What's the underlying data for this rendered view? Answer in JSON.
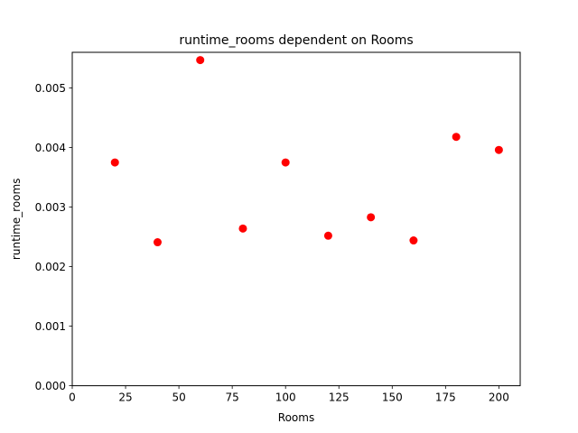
{
  "chart_data": {
    "type": "scatter",
    "title": "runtime_rooms dependent on Rooms",
    "xlabel": "Rooms",
    "ylabel": "runtime_rooms",
    "xlim": [
      0,
      210
    ],
    "ylim": [
      0,
      0.0056
    ],
    "xticks": [
      0,
      25,
      50,
      75,
      100,
      125,
      150,
      175,
      200
    ],
    "yticks": [
      0.0,
      0.001,
      0.002,
      0.003,
      0.004,
      0.005
    ],
    "xtick_labels": [
      "0",
      "25",
      "50",
      "75",
      "100",
      "125",
      "150",
      "175",
      "200"
    ],
    "ytick_labels": [
      "0.000",
      "0.001",
      "0.002",
      "0.003",
      "0.004",
      "0.005"
    ],
    "grid": false,
    "marker_color": "#ff0000",
    "x": [
      20,
      40,
      60,
      80,
      100,
      120,
      140,
      160,
      180,
      200
    ],
    "y": [
      0.00375,
      0.00241,
      0.00547,
      0.00264,
      0.00375,
      0.00252,
      0.00283,
      0.00244,
      0.00418,
      0.00396
    ]
  }
}
